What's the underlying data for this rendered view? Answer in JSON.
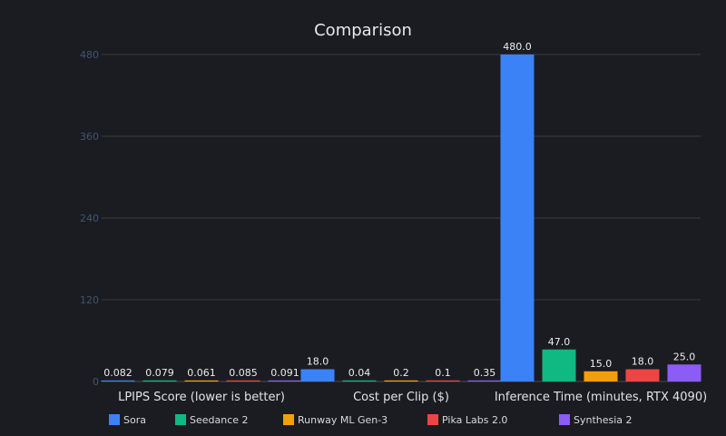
{
  "chart_data": {
    "type": "bar",
    "title": "Comparison",
    "categories": [
      "LPIPS Score (lower is better)",
      "Cost per Clip ($)",
      "Inference Time (minutes, RTX 4090)"
    ],
    "ylim": [
      0,
      480
    ],
    "yticks": [
      0,
      120,
      240,
      360,
      480
    ],
    "grid": true,
    "legend_position": "bottom",
    "series": [
      {
        "name": "Sora",
        "color": "#3b82f6",
        "values": [
          0.082,
          18.0,
          480.0
        ],
        "labels": [
          "0.082",
          "18.0",
          "480.0"
        ]
      },
      {
        "name": "Seedance 2",
        "color": "#10b981",
        "values": [
          0.079,
          0.04,
          47.0
        ],
        "labels": [
          "0.079",
          "0.04",
          "47.0"
        ]
      },
      {
        "name": "Runway ML Gen-3",
        "color": "#f59e0b",
        "values": [
          0.061,
          0.2,
          15.0
        ],
        "labels": [
          "0.061",
          "0.2",
          "15.0"
        ]
      },
      {
        "name": "Pika Labs 2.0",
        "color": "#ef4444",
        "values": [
          0.085,
          0.1,
          18.0
        ],
        "labels": [
          "0.085",
          "0.1",
          "18.0"
        ]
      },
      {
        "name": "Synthesia 2",
        "color": "#8b5cf6",
        "values": [
          0.091,
          0.35,
          25.0
        ],
        "labels": [
          "0.091",
          "0.35",
          "25.0"
        ]
      }
    ]
  }
}
